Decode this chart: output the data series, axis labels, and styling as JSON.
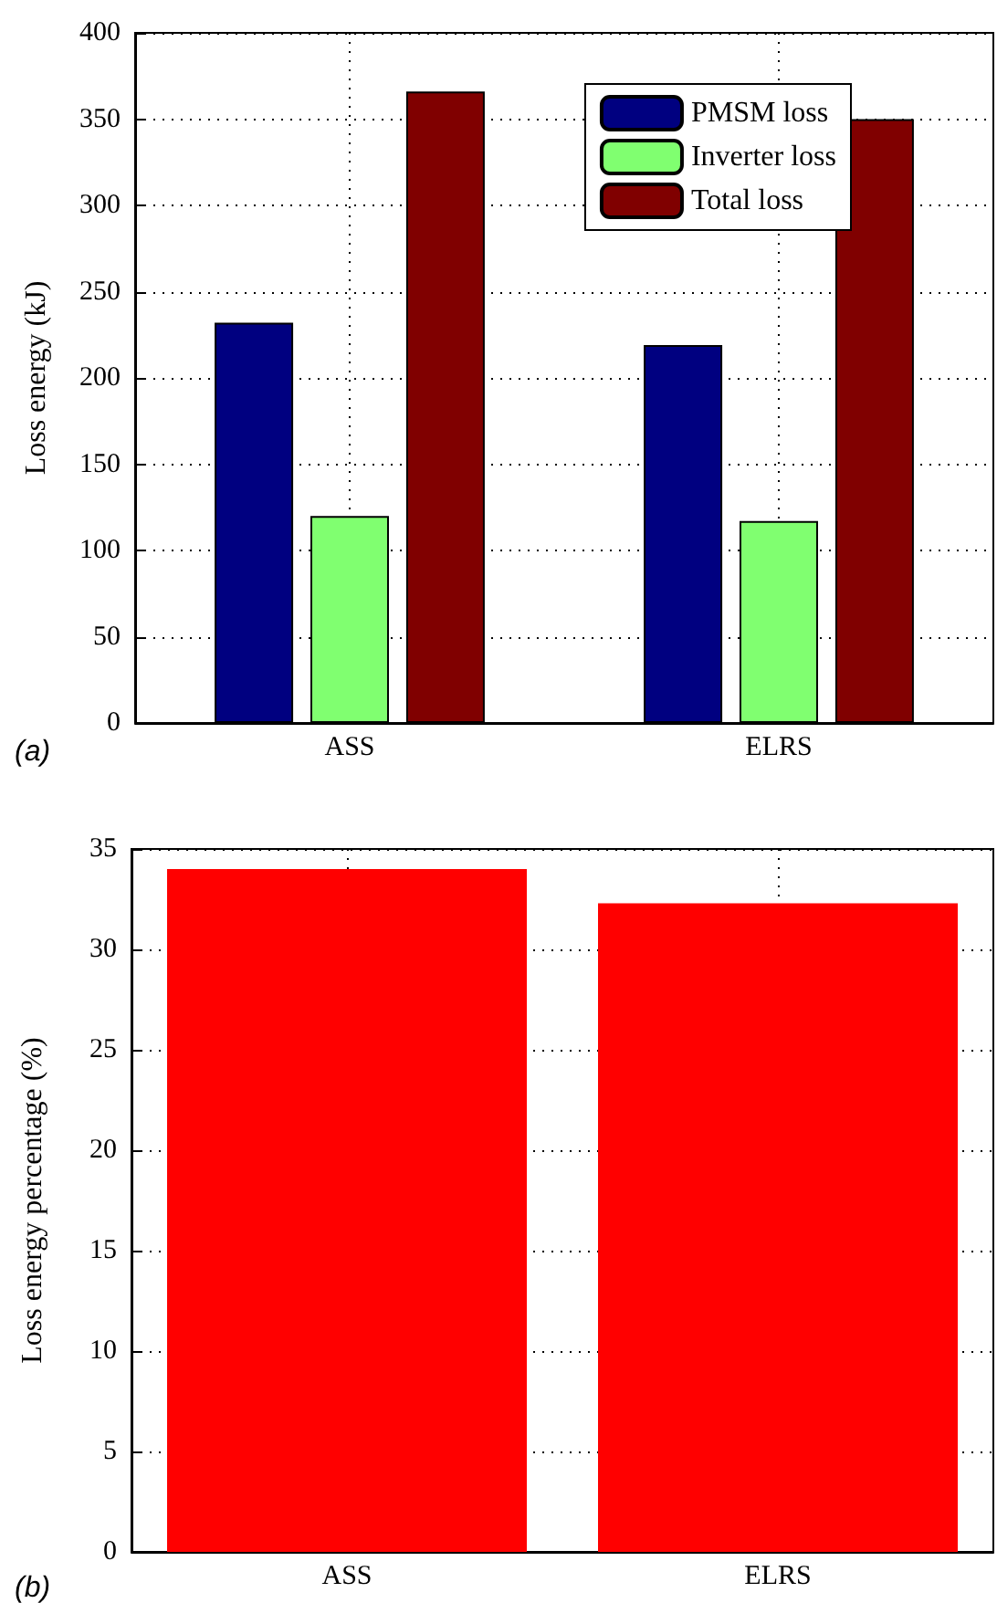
{
  "chart_data": [
    {
      "type": "bar",
      "categories": [
        "ASS",
        "ELRS"
      ],
      "ylabel": "Loss energy (kJ)",
      "ylim": [
        0,
        400
      ],
      "yticks": [
        0,
        50,
        100,
        150,
        200,
        250,
        300,
        350,
        400
      ],
      "grid": true,
      "legend": "top right",
      "annotations": [
        "(a)"
      ],
      "series": [
        {
          "name": "PMSM loss",
          "color": "#000080",
          "values": [
            232,
            219
          ]
        },
        {
          "name": "Inverter loss",
          "color": "#80ff70",
          "values": [
            120,
            117
          ]
        },
        {
          "name": "Total loss",
          "color": "#800000",
          "values": [
            366,
            350
          ]
        }
      ]
    },
    {
      "type": "bar",
      "categories": [
        "ASS",
        "ELRS"
      ],
      "ylabel": "Loss energy percentage (%)",
      "ylim": [
        0,
        35
      ],
      "yticks": [
        0,
        5,
        10,
        15,
        20,
        25,
        30,
        35
      ],
      "grid": true,
      "annotations": [
        "(b)"
      ],
      "color": "#ff0000",
      "values": [
        34,
        32.3
      ]
    }
  ]
}
